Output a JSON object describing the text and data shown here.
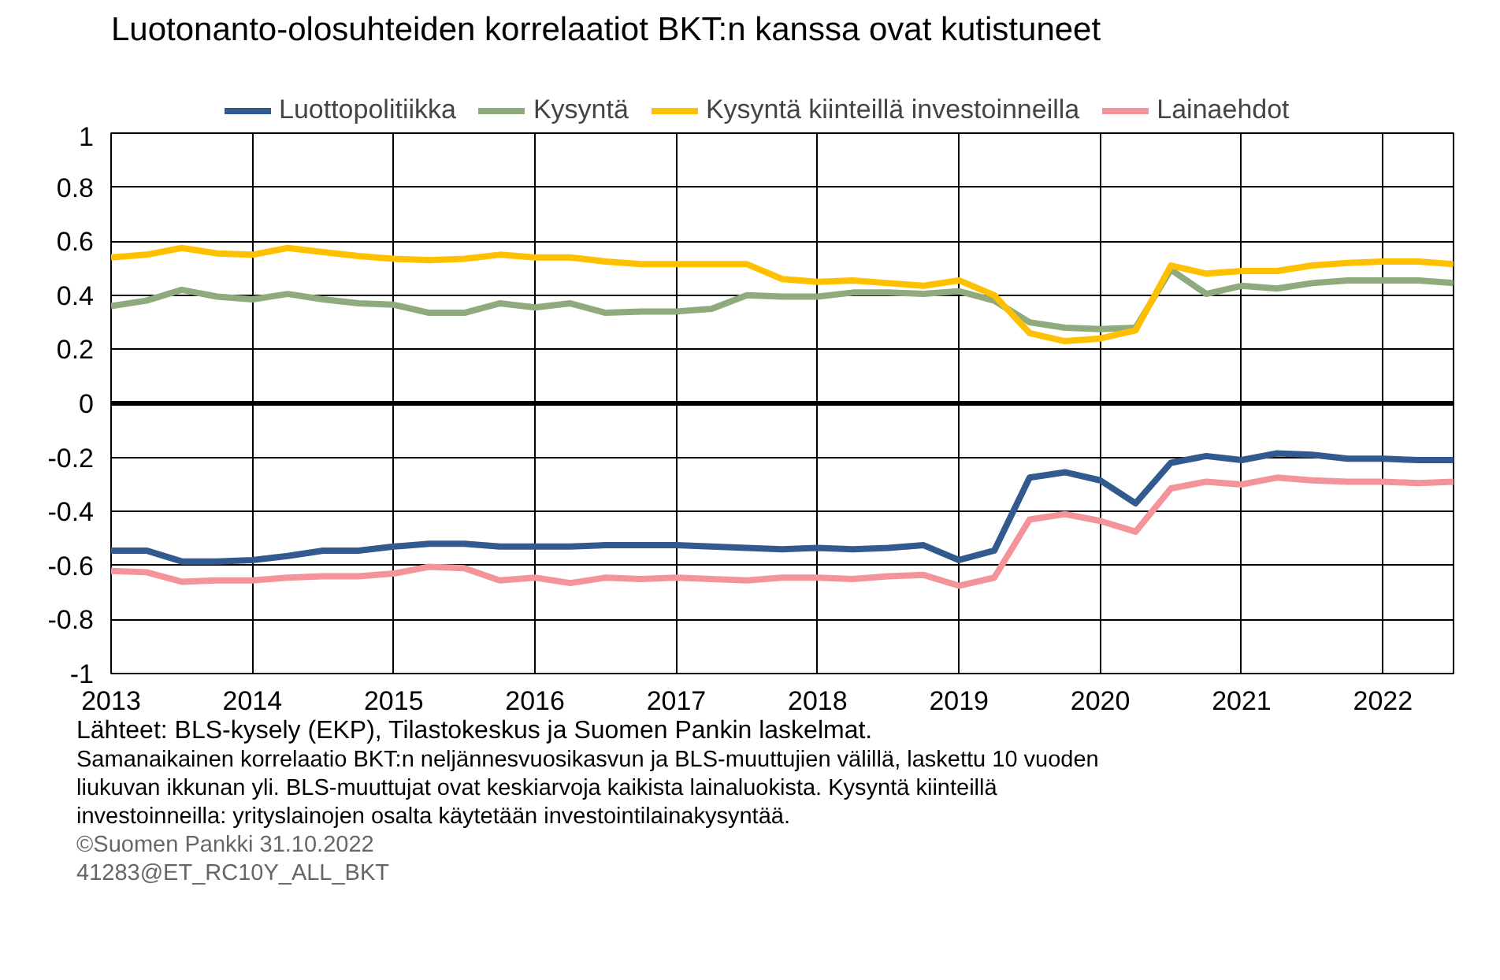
{
  "chart_data": {
    "type": "line",
    "title": "Luotonanto-olosuhteiden korrelaatiot BKT:n kanssa ovat kutistuneet",
    "x": [
      2013,
      2013.25,
      2013.5,
      2013.75,
      2014,
      2014.25,
      2014.5,
      2014.75,
      2015,
      2015.25,
      2015.5,
      2015.75,
      2016,
      2016.25,
      2016.5,
      2016.75,
      2017,
      2017.25,
      2017.5,
      2017.75,
      2018,
      2018.25,
      2018.5,
      2018.75,
      2019,
      2019.25,
      2019.5,
      2019.75,
      2020,
      2020.25,
      2020.5,
      2020.75,
      2021,
      2021.25,
      2021.5,
      2021.75,
      2022,
      2022.25,
      2022.5
    ],
    "series": [
      {
        "name": "Luottopolitiikka",
        "color": "#335a8e",
        "values": [
          -0.545,
          -0.545,
          -0.585,
          -0.585,
          -0.58,
          -0.565,
          -0.545,
          -0.545,
          -0.53,
          -0.52,
          -0.52,
          -0.53,
          -0.53,
          -0.53,
          -0.525,
          -0.525,
          -0.525,
          -0.53,
          -0.535,
          -0.54,
          -0.535,
          -0.54,
          -0.535,
          -0.525,
          -0.58,
          -0.545,
          -0.275,
          -0.255,
          -0.285,
          -0.37,
          -0.22,
          -0.195,
          -0.21,
          -0.185,
          -0.19,
          -0.205,
          -0.205,
          -0.21,
          -0.21
        ]
      },
      {
        "name": "Kysyntä",
        "color": "#8faa7c",
        "values": [
          0.36,
          0.38,
          0.42,
          0.395,
          0.385,
          0.405,
          0.385,
          0.37,
          0.365,
          0.335,
          0.335,
          0.37,
          0.355,
          0.37,
          0.335,
          0.34,
          0.34,
          0.35,
          0.4,
          0.395,
          0.395,
          0.41,
          0.41,
          0.405,
          0.415,
          0.38,
          0.3,
          0.28,
          0.275,
          0.28,
          0.495,
          0.405,
          0.435,
          0.425,
          0.445,
          0.455,
          0.455,
          0.455,
          0.445
        ]
      },
      {
        "name": "Kysyntä kiinteillä investoinneilla",
        "color": "#ffc000",
        "values": [
          0.54,
          0.55,
          0.575,
          0.555,
          0.55,
          0.575,
          0.56,
          0.545,
          0.535,
          0.53,
          0.535,
          0.55,
          0.54,
          0.54,
          0.525,
          0.515,
          0.515,
          0.515,
          0.515,
          0.46,
          0.45,
          0.455,
          0.445,
          0.435,
          0.455,
          0.4,
          0.26,
          0.23,
          0.24,
          0.27,
          0.51,
          0.48,
          0.49,
          0.49,
          0.51,
          0.52,
          0.525,
          0.525,
          0.515
        ]
      },
      {
        "name": "Lainaehdot",
        "color": "#f4949a",
        "values": [
          -0.62,
          -0.625,
          -0.66,
          -0.655,
          -0.655,
          -0.645,
          -0.64,
          -0.64,
          -0.63,
          -0.605,
          -0.61,
          -0.655,
          -0.645,
          -0.665,
          -0.645,
          -0.65,
          -0.645,
          -0.65,
          -0.655,
          -0.645,
          -0.645,
          -0.65,
          -0.64,
          -0.635,
          -0.675,
          -0.645,
          -0.43,
          -0.41,
          -0.435,
          -0.475,
          -0.315,
          -0.29,
          -0.3,
          -0.275,
          -0.285,
          -0.29,
          -0.29,
          -0.295,
          -0.29
        ]
      }
    ],
    "xlim": [
      2013,
      2022.5
    ],
    "xticks": [
      2013,
      2014,
      2015,
      2016,
      2017,
      2018,
      2019,
      2020,
      2021,
      2022
    ],
    "ylim": [
      -1,
      1
    ],
    "yticks": [
      -1,
      -0.8,
      -0.6,
      -0.4,
      -0.2,
      0,
      0.2,
      0.4,
      0.6,
      0.8,
      1
    ],
    "ref_lines": [
      {
        "axis": "y",
        "value": 0,
        "color": "#000000"
      }
    ],
    "grid": true,
    "legend": "top",
    "line_style": "solid",
    "marker": "none",
    "annotations": [
      "Lähteet: BLS-kysely (EKP), Tilastokeskus ja Suomen Pankin laskelmat.",
      "Samanaikainen korrelaatio BKT:n neljännesvuosikasvun ja BLS-muuttujien välillä, laskettu 10 vuoden liukuvan ikkunan yli. BLS-muuttujat ovat keskiarvoja kaikista lainaluokista. Kysyntä kiinteillä investoinneilla: yrityslainojen osalta käytetään investointilainakysyntää.",
      "©Suomen Pankki 31.10.2022",
      "41283@ET_RC10Y_ALL_BKT"
    ]
  }
}
